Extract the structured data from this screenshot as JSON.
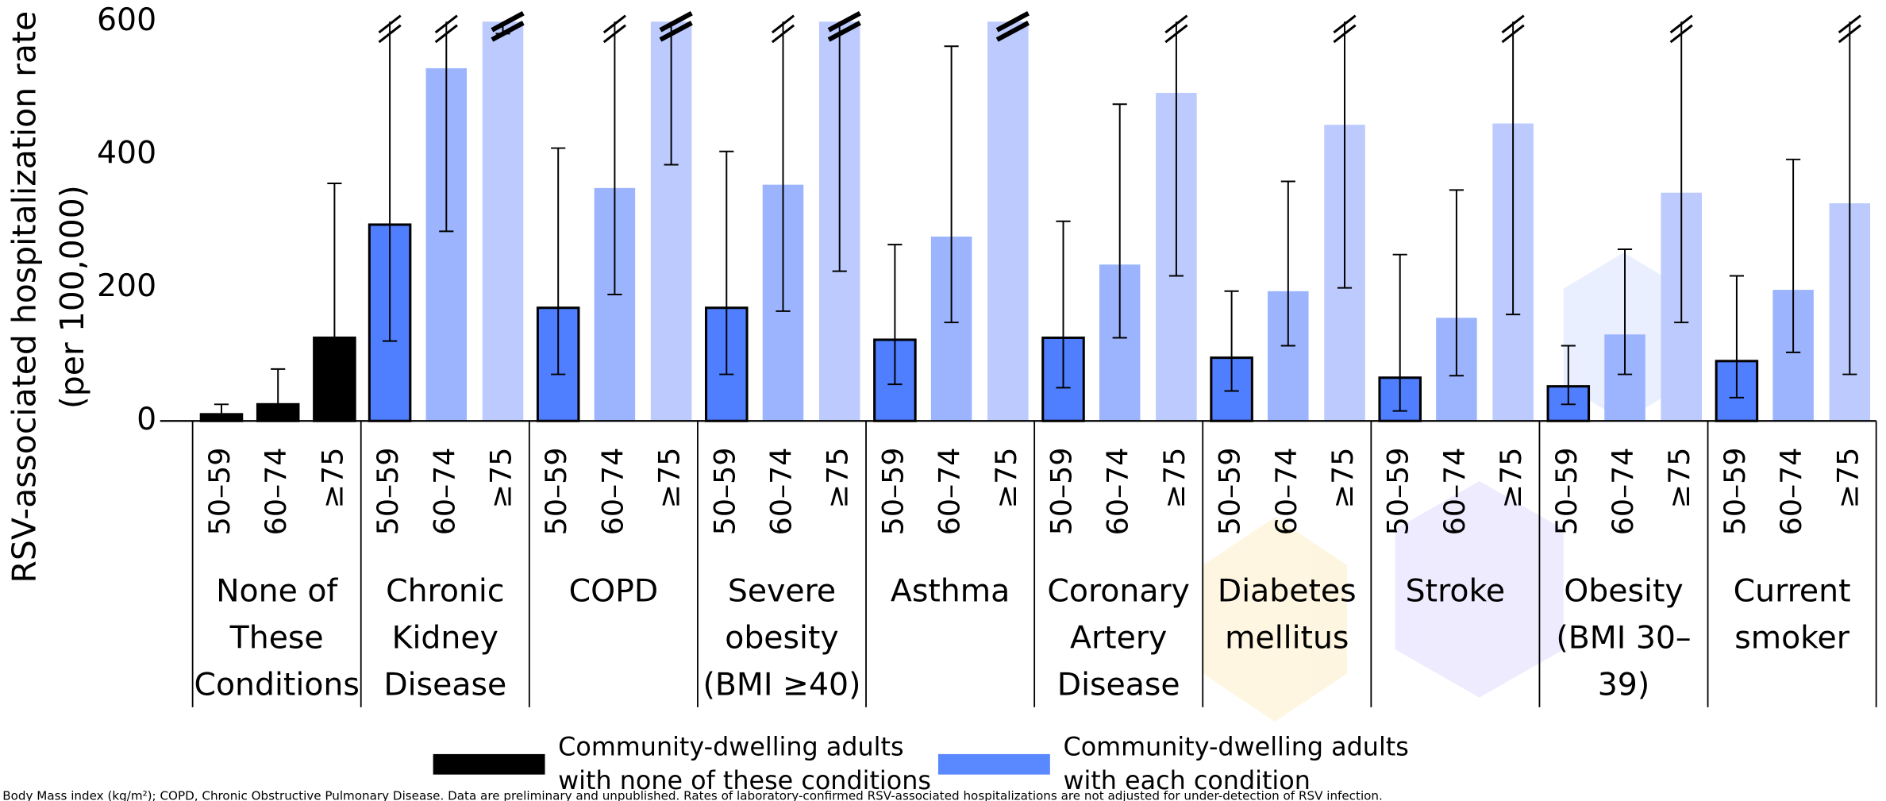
{
  "chart_data": {
    "type": "bar",
    "ylabel": [
      "RSV-associated hospitalization rate",
      "(per 100,000)"
    ],
    "categories": [
      [
        "None of",
        "These",
        "Conditions"
      ],
      [
        "Chronic",
        "Kidney",
        "Disease"
      ],
      [
        "COPD"
      ],
      [
        "Severe",
        "obesity",
        "(BMI ≥40)"
      ],
      [
        "Asthma"
      ],
      [
        "Coronary",
        "Artery",
        "Disease"
      ],
      [
        "Diabetes",
        "mellitus"
      ],
      [
        "Stroke"
      ],
      [
        "Obesity",
        "(BMI 30–",
        "39)"
      ],
      [
        "Current",
        "smoker"
      ]
    ],
    "series": [
      {
        "name": "50–59",
        "color": "#4f7efe",
        "values": [
          10,
          295,
          170,
          170,
          122,
          125,
          95,
          65,
          52,
          90
        ],
        "lower": [
          3,
          120,
          70,
          70,
          55,
          50,
          45,
          15,
          25,
          35
        ],
        "upper": [
          25,
          600,
          410,
          405,
          265,
          300,
          195,
          250,
          113,
          218
        ]
      },
      {
        "name": "60–74",
        "color": "#9cb4fe",
        "values": [
          25,
          530,
          350,
          355,
          277,
          235,
          195,
          155,
          130,
          197
        ],
        "lower": [
          3,
          285,
          190,
          165,
          148,
          125,
          113,
          68,
          70,
          103
        ],
        "upper": [
          78,
          600,
          600,
          600,
          563,
          476,
          360,
          347,
          258,
          393
        ]
      },
      {
        "name": "≥75",
        "color": "#bccafe",
        "values": [
          125,
          600,
          600,
          600,
          600,
          493,
          445,
          447,
          343,
          327
        ],
        "lower": [
          40,
          582,
          385,
          225,
          null,
          218,
          200,
          160,
          148,
          70
        ],
        "upper": [
          357,
          600,
          600,
          600,
          null,
          600,
          600,
          600,
          600,
          600
        ]
      }
    ],
    "ylim": [
      0,
      600
    ],
    "yticks": [
      0,
      200,
      400,
      600
    ],
    "legend": [
      {
        "label": [
          "Community-dwelling adults",
          "with none of these conditions"
        ],
        "color": "#000000"
      },
      {
        "label": [
          "Community-dwelling adults",
          "with each condition"
        ],
        "color": "#5a88fe"
      }
    ],
    "footnote": "Body Mass index (kg/m²); COPD, Chronic Obstructive Pulmonary Disease. Data are preliminary and unpublished. Rates of laboratory-confirmed RSV-associated hospitalizations are not adjusted for under-detection of RSV infection."
  }
}
